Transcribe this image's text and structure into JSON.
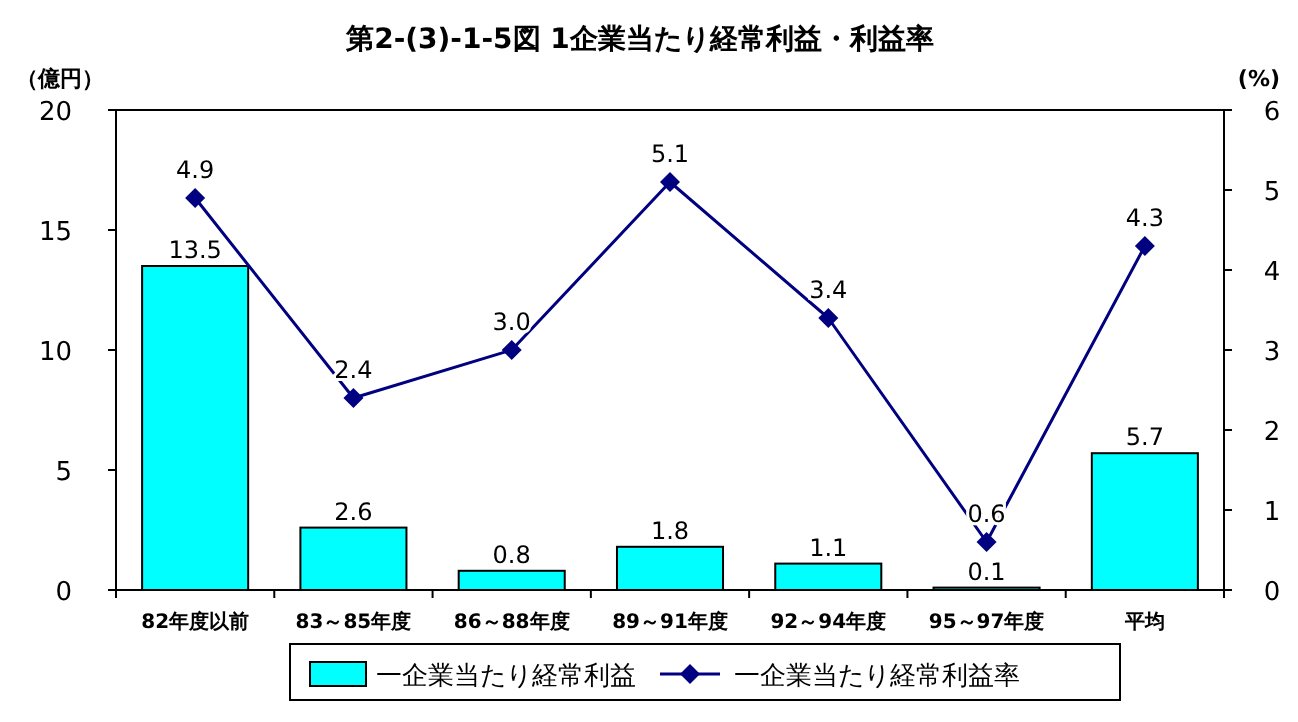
{
  "chart_data": {
    "type": "bar",
    "title": "第2-(3)-1-5図 1企業当たり経常利益・利益率",
    "ylabel": "（億円）",
    "y2label": "(%)",
    "categories": [
      "82年度以前",
      "83～85年度",
      "86～88年度",
      "89～91年度",
      "92～94年度",
      "95～97年度",
      "平均"
    ],
    "series": [
      {
        "name": "一企業当たり経常利益",
        "color": "#00ffff",
        "values": [
          13.5,
          2.6,
          0.8,
          1.8,
          1.1,
          0.1,
          5.7
        ],
        "value_labels": [
          "13.5",
          "2.6",
          "0.8",
          "1.8",
          "1.1",
          "0.1",
          "5.7"
        ]
      },
      {
        "name": "一企業当たり経常利益率",
        "type": "line",
        "axis": "y2",
        "color": "#000080",
        "marker": "diamond",
        "values": [
          4.9,
          2.4,
          3.0,
          5.1,
          3.4,
          0.6,
          4.3
        ],
        "value_labels": [
          "4.9",
          "2.4",
          "3.0",
          "5.1",
          "3.4",
          "0.6",
          "4.3"
        ]
      }
    ],
    "ylim": [
      0,
      20
    ],
    "yticks": [
      0,
      5,
      10,
      15,
      20
    ],
    "y2lim": [
      0,
      6
    ],
    "y2ticks": [
      0,
      1,
      2,
      3,
      4,
      5,
      6
    ],
    "legend": "bottom",
    "grid": false
  }
}
